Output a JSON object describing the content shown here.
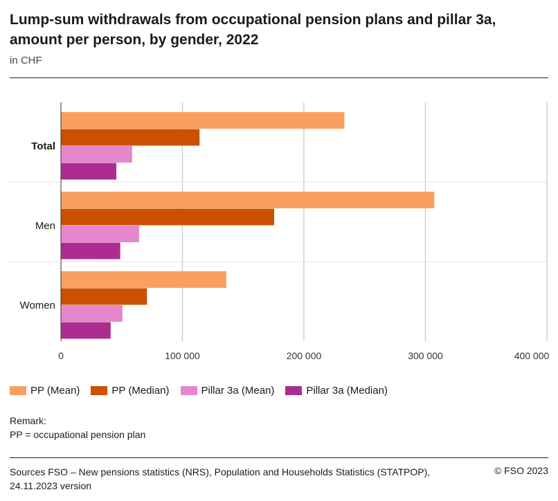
{
  "chart_data": {
    "type": "bar",
    "orientation": "horizontal",
    "title": "Lump-sum withdrawals from occupational pension plans and pillar 3a, amount per person, by gender, 2022",
    "subtitle": "in CHF",
    "categories": [
      "Total",
      "Men",
      "Women"
    ],
    "series": [
      {
        "name": "PP (Mean)",
        "color": "#f9a05e",
        "values": [
          233300,
          307300,
          136100
        ]
      },
      {
        "name": "PP (Median)",
        "color": "#cc5000",
        "values": [
          114100,
          175500,
          70800
        ]
      },
      {
        "name": "Pillar 3a (Mean)",
        "color": "#e487cc",
        "values": [
          58600,
          64300,
          50600
        ]
      },
      {
        "name": "Pillar 3a (Median)",
        "color": "#ad2c8f",
        "values": [
          45600,
          48800,
          40900
        ]
      }
    ],
    "xlim": [
      0,
      400000
    ],
    "xticks": [
      0,
      100000,
      200000,
      300000,
      400000
    ],
    "xtick_labels": [
      "0",
      "100 000",
      "200 000",
      "300 000",
      "400 000"
    ],
    "grid": true,
    "legend_position": "bottom"
  },
  "remark": {
    "label": "Remark:",
    "text": "PP = occupational pension plan"
  },
  "source": "Sources FSO – New pensions statistics (NRS), Population and Households Statistics (STATPOP), 24.11.2023 version",
  "copyright": "© FSO 2023"
}
